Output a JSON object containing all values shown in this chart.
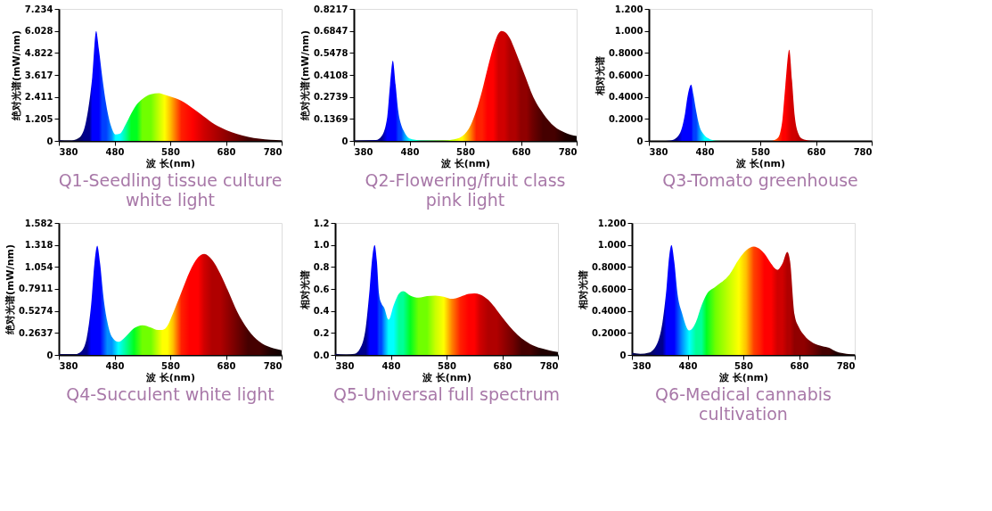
{
  "chart_data": [
    {
      "type": "area",
      "title": "Q1-Seedling tissue culture white light",
      "xlabel": "波 长(nm)",
      "ylabel": "绝对光谱(mW/nm)",
      "xlim": [
        380,
        780
      ],
      "xticks": [
        380,
        480,
        580,
        680,
        780
      ],
      "ylim": [
        0,
        7.234
      ],
      "yticks": [
        0,
        1.205,
        2.411,
        3.617,
        4.822,
        6.028,
        7.234
      ],
      "x": [
        380,
        400,
        415,
        425,
        435,
        440,
        447,
        452,
        458,
        465,
        475,
        482,
        490,
        500,
        510,
        520,
        530,
        545,
        560,
        570,
        580,
        600,
        620,
        640,
        660,
        680,
        700,
        720,
        740,
        760,
        780
      ],
      "values": [
        0.05,
        0.02,
        0.15,
        0.6,
        2.2,
        3.5,
        6.03,
        5.0,
        3.5,
        2.0,
        0.7,
        0.35,
        0.4,
        0.9,
        1.5,
        2.0,
        2.3,
        2.55,
        2.62,
        2.53,
        2.43,
        2.2,
        1.8,
        1.35,
        0.9,
        0.6,
        0.38,
        0.22,
        0.12,
        0.06,
        0.03
      ],
      "colors": [
        "#0a0a50",
        "#0a0a50",
        "#0a0a50",
        "#00008c",
        "#00008c",
        "#0000ff",
        "#0000ff",
        "#0000ff",
        "#0040ff",
        "#0040ff",
        "#0090ff",
        "#00ffff",
        "#00ffff",
        "#00ff99",
        "#00ff20",
        "#00ff20",
        "#70ff00",
        "#70ff00",
        "#c8ff00",
        "#ffff00",
        "#ffc000",
        "#ff2000",
        "#ff0000",
        "#d00000",
        "#b00000",
        "#900000",
        "#700000",
        "#450000",
        "#450000",
        "#200000",
        "#200000"
      ]
    },
    {
      "type": "area",
      "title": "Q2-Flowering/fruit class pink light",
      "xlabel": "波 长(nm)",
      "ylabel": "绝对光谱(mW/nm)",
      "xlim": [
        380,
        780
      ],
      "xticks": [
        380,
        480,
        580,
        680,
        780
      ],
      "ylim": [
        0,
        0.8217
      ],
      "yticks": [
        0,
        0.1369,
        0.2739,
        0.4108,
        0.5478,
        0.6847,
        0.8217
      ],
      "x": [
        380,
        420,
        430,
        440,
        445,
        450,
        455,
        460,
        465,
        470,
        480,
        500,
        540,
        560,
        570,
        575,
        590,
        600,
        610,
        620,
        630,
        640,
        645,
        650,
        660,
        670,
        680,
        690,
        700,
        720,
        740,
        760,
        780
      ],
      "values": [
        0.003,
        0.005,
        0.03,
        0.15,
        0.35,
        0.5,
        0.35,
        0.18,
        0.1,
        0.06,
        0.015,
        0.003,
        0.003,
        0.01,
        0.02,
        0.03,
        0.1,
        0.19,
        0.31,
        0.45,
        0.58,
        0.67,
        0.684,
        0.68,
        0.64,
        0.56,
        0.47,
        0.38,
        0.29,
        0.17,
        0.09,
        0.05,
        0.03
      ],
      "colors": [
        "#0a0a50",
        "#00008c",
        "#00008c",
        "#0000ff",
        "#0000ff",
        "#0000ff",
        "#0000ff",
        "#0040ff",
        "#0040ff",
        "#0090ff",
        "#00ffff",
        "#00ff99",
        "#70ff00",
        "#c8ff00",
        "#ffff00",
        "#ffff00",
        "#ff8000",
        "#ff2000",
        "#ff2000",
        "#ff0000",
        "#ff0000",
        "#d00000",
        "#d00000",
        "#d00000",
        "#b00000",
        "#b00000",
        "#900000",
        "#900000",
        "#700000",
        "#450000",
        "#450000",
        "#200000",
        "#100000"
      ]
    },
    {
      "type": "area",
      "title": "Q3-Tomato greenhouse",
      "xlabel": "波 长(nm)",
      "ylabel": "相对光谱",
      "xlim": [
        380,
        780
      ],
      "xticks": [
        380,
        480,
        580,
        680,
        780
      ],
      "ylim": [
        0,
        1.2
      ],
      "yticks": [
        0,
        {
          "value": 0.2,
          "label": "0.2000"
        },
        {
          "value": 0.4,
          "label": "0.4000"
        },
        {
          "value": 0.6,
          "label": "0.6000"
        },
        {
          "value": 0.8,
          "label": "0.8000"
        },
        {
          "value": 1.0,
          "label": "1.000"
        },
        {
          "value": 1.2,
          "label": "1.200"
        }
      ],
      "x": [
        380,
        400,
        420,
        430,
        440,
        445,
        450,
        456,
        460,
        465,
        470,
        480,
        490,
        500,
        520,
        600,
        610,
        615,
        620,
        625,
        632,
        637,
        642,
        648,
        655,
        670,
        700,
        780
      ],
      "values": [
        0,
        0,
        0.005,
        0.03,
        0.13,
        0.25,
        0.42,
        0.51,
        0.42,
        0.27,
        0.15,
        0.05,
        0.015,
        0.003,
        0,
        0,
        0.02,
        0.06,
        0.2,
        0.5,
        0.83,
        0.55,
        0.22,
        0.07,
        0.02,
        0.003,
        0,
        0
      ],
      "colors": [
        "#0a0a50",
        "#0a0a50",
        "#00008c",
        "#00008c",
        "#0000ff",
        "#0000ff",
        "#0000ff",
        "#0000ff",
        "#0040ff",
        "#0040ff",
        "#0090ff",
        "#00ffff",
        "#00ffff",
        "#00ff99",
        "#00ff20",
        "#ff4000",
        "#ff4000",
        "#ff2000",
        "#ff0000",
        "#ff0000",
        "#e00000",
        "#d00000",
        "#d00000",
        "#c00000",
        "#b00000",
        "#b00000",
        "#700000",
        "#200000"
      ]
    },
    {
      "type": "area",
      "title": "Q4-Succulent white light",
      "xlabel": "波 长(nm)",
      "ylabel": "绝对光谱(mW/nm)",
      "xlim": [
        380,
        780
      ],
      "xticks": [
        380,
        480,
        580,
        680,
        780
      ],
      "ylim": [
        0,
        1.582
      ],
      "yticks": [
        0,
        0.2637,
        0.5274,
        0.7911,
        1.054,
        1.318,
        1.582
      ],
      "x": [
        380,
        410,
        420,
        430,
        438,
        444,
        449,
        454,
        460,
        467,
        475,
        487,
        500,
        515,
        530,
        545,
        558,
        566,
        575,
        585,
        600,
        615,
        630,
        641,
        655,
        670,
        685,
        700,
        720,
        740,
        760,
        780
      ],
      "values": [
        0.01,
        0.01,
        0.04,
        0.2,
        0.6,
        1.1,
        1.31,
        1.1,
        0.7,
        0.4,
        0.22,
        0.157,
        0.22,
        0.32,
        0.356,
        0.33,
        0.3,
        0.3,
        0.35,
        0.5,
        0.75,
        1.0,
        1.17,
        1.21,
        1.14,
        0.97,
        0.75,
        0.52,
        0.3,
        0.16,
        0.09,
        0.057
      ],
      "colors": [
        "#0a0a50",
        "#0a0a50",
        "#00008c",
        "#00008c",
        "#0000ff",
        "#0000ff",
        "#0000ff",
        "#0000ff",
        "#0040ff",
        "#0090ff",
        "#0090ff",
        "#00ffff",
        "#00ff99",
        "#00ff20",
        "#70ff00",
        "#70ff00",
        "#c8ff00",
        "#ffff00",
        "#ffff00",
        "#ffc000",
        "#ff2000",
        "#ff0000",
        "#ff0000",
        "#d00000",
        "#b00000",
        "#b00000",
        "#900000",
        "#700000",
        "#450000",
        "#450000",
        "#200000",
        "#100000"
      ]
    },
    {
      "type": "area",
      "title": "Q5-Universal full spectrum",
      "xlabel": "波 长(nm)",
      "ylabel": "相对光谱",
      "xlim": [
        380,
        780
      ],
      "xticks": [
        380,
        480,
        580,
        680,
        780
      ],
      "ylim": [
        0,
        1.2
      ],
      "yticks": [
        {
          "value": 0,
          "label": "0.0"
        },
        0.2,
        0.4,
        0.6,
        0.8,
        {
          "value": 1.0,
          "label": "1.0"
        },
        1.2
      ],
      "x": [
        380,
        400,
        415,
        425,
        435,
        442,
        447,
        451,
        455,
        459,
        463,
        468,
        476,
        485,
        495,
        502,
        515,
        530,
        545,
        560,
        575,
        590,
        605,
        620,
        630,
        640,
        655,
        670,
        685,
        700,
        715,
        730,
        750,
        765,
        780
      ],
      "values": [
        0.01,
        0.005,
        0.01,
        0.06,
        0.25,
        0.6,
        0.9,
        1.0,
        0.85,
        0.55,
        0.47,
        0.43,
        0.32,
        0.45,
        0.56,
        0.58,
        0.54,
        0.52,
        0.535,
        0.54,
        0.53,
        0.51,
        0.53,
        0.555,
        0.56,
        0.55,
        0.5,
        0.41,
        0.31,
        0.22,
        0.15,
        0.1,
        0.06,
        0.04,
        0.027
      ],
      "colors": [
        "#0a0a50",
        "#0a0a50",
        "#0a0a50",
        "#00008c",
        "#00008c",
        "#0000ff",
        "#0000ff",
        "#0000ff",
        "#0000ff",
        "#0040ff",
        "#0040ff",
        "#0090ff",
        "#00ffff",
        "#00ffff",
        "#00ff99",
        "#00ff99",
        "#00ff20",
        "#70ff00",
        "#70ff00",
        "#c8ff00",
        "#ffff00",
        "#ff8000",
        "#ff2000",
        "#ff0000",
        "#ff0000",
        "#d00000",
        "#b00000",
        "#b00000",
        "#900000",
        "#700000",
        "#450000",
        "#450000",
        "#200000",
        "#200000",
        "#100000"
      ]
    },
    {
      "type": "area",
      "title": "Q6-Medical cannabis cultivation",
      "xlabel": "波 长(nm)",
      "ylabel": "相对光谱",
      "xlim": [
        380,
        780
      ],
      "xticks": [
        380,
        480,
        580,
        680,
        780
      ],
      "ylim": [
        0,
        1.2
      ],
      "yticks": [
        0,
        {
          "value": 0.2,
          "label": "0.2000"
        },
        {
          "value": 0.4,
          "label": "0.4000"
        },
        {
          "value": 0.6,
          "label": "0.6000"
        },
        {
          "value": 0.8,
          "label": "0.8000"
        },
        {
          "value": 1.0,
          "label": "1.000"
        },
        {
          "value": 1.2,
          "label": "1.200"
        }
      ],
      "x": [
        380,
        395,
        410,
        425,
        435,
        442,
        447,
        451,
        456,
        462,
        470,
        483,
        495,
        505,
        514,
        530,
        555,
        572,
        585,
        599,
        610,
        618,
        630,
        641,
        650,
        659,
        664,
        672,
        680,
        689,
        705,
        722,
        734,
        747,
        765,
        780
      ],
      "values": [
        0.02,
        0.01,
        0.02,
        0.1,
        0.3,
        0.6,
        0.9,
        1.0,
        0.85,
        0.55,
        0.38,
        0.223,
        0.3,
        0.45,
        0.55,
        0.62,
        0.73,
        0.87,
        0.95,
        0.985,
        0.96,
        0.92,
        0.83,
        0.775,
        0.83,
        0.937,
        0.85,
        0.365,
        0.25,
        0.18,
        0.11,
        0.08,
        0.065,
        0.03,
        0.01,
        0.005
      ],
      "colors": [
        "#0a0a50",
        "#0a0a50",
        "#0a0a50",
        "#00008c",
        "#00008c",
        "#0000ff",
        "#0000ff",
        "#0000ff",
        "#0000ff",
        "#0040ff",
        "#0090ff",
        "#00ffff",
        "#00ff99",
        "#00ff99",
        "#00ff20",
        "#70ff00",
        "#c8ff00",
        "#ffff00",
        "#ffc000",
        "#ff4000",
        "#ff2000",
        "#ff0000",
        "#ff0000",
        "#d00000",
        "#d00000",
        "#b00000",
        "#b00000",
        "#900000",
        "#900000",
        "#900000",
        "#700000",
        "#450000",
        "#450000",
        "#200000",
        "#200000",
        "#100000"
      ]
    }
  ]
}
